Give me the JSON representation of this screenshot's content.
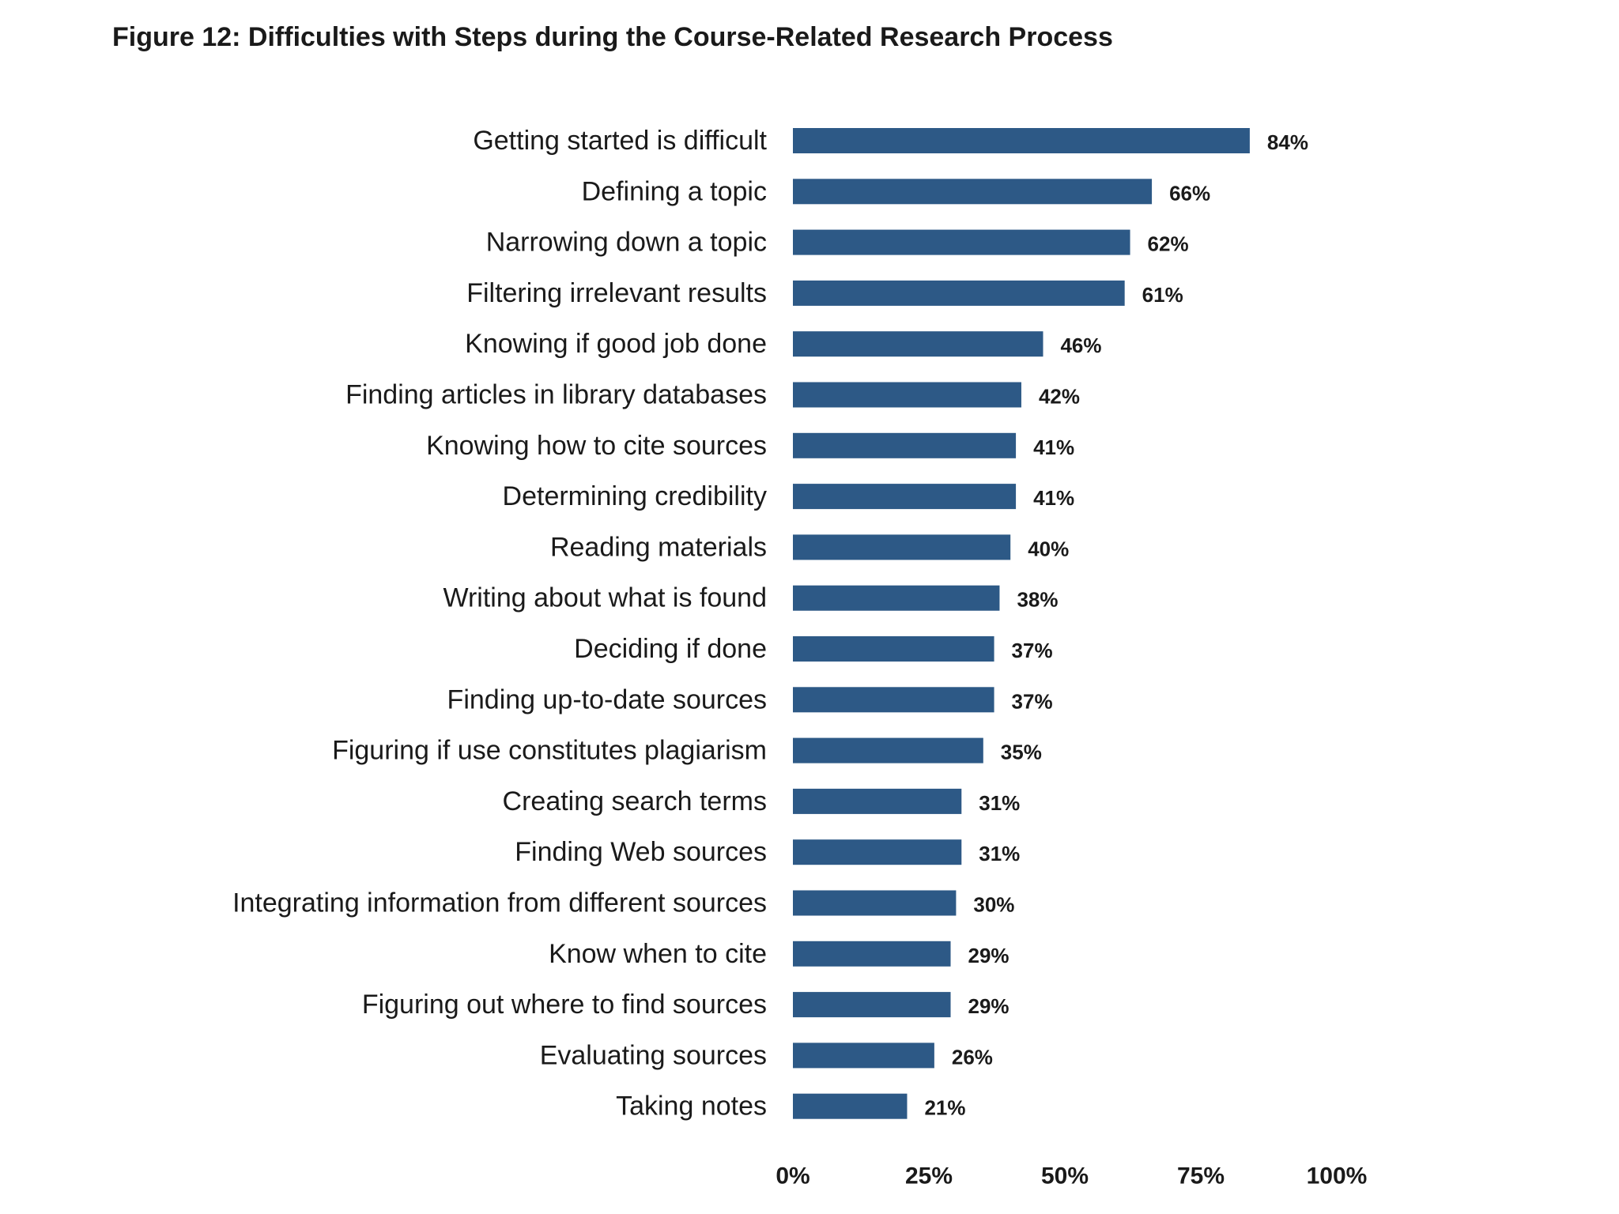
{
  "chart_data": {
    "type": "bar",
    "orientation": "horizontal",
    "title": "Figure 12: Difficulties with Steps during the Course-Related Research Process",
    "categories": [
      "Getting started is difficult",
      "Defining a topic",
      "Narrowing down a topic",
      "Filtering irrelevant results",
      "Knowing if good job done",
      "Finding articles in library databases",
      "Knowing how to cite sources",
      "Determining credibility",
      "Reading materials",
      "Writing about what is found",
      "Deciding if done",
      "Finding up-to-date sources",
      "Figuring if use constitutes plagiarism",
      "Creating search terms",
      "Finding Web sources",
      "Integrating information from different sources",
      "Know when to cite",
      "Figuring out where to find sources",
      "Evaluating sources",
      "Taking notes"
    ],
    "values": [
      84,
      66,
      62,
      61,
      46,
      42,
      41,
      41,
      40,
      38,
      37,
      37,
      35,
      31,
      31,
      30,
      29,
      29,
      26,
      21
    ],
    "value_labels": [
      "84%",
      "66%",
      "62%",
      "61%",
      "46%",
      "42%",
      "41%",
      "41%",
      "40%",
      "38%",
      "37%",
      "37%",
      "35%",
      "31%",
      "31%",
      "30%",
      "29%",
      "29%",
      "26%",
      "21%"
    ],
    "xlim": [
      0,
      100
    ],
    "xticks": [
      0,
      25,
      50,
      75,
      100
    ],
    "xtick_labels": [
      "0%",
      "25%",
      "50%",
      "75%",
      "100%"
    ],
    "xlabel": "",
    "ylabel": "",
    "grid": false,
    "legend": "none",
    "bar_color": "#2d5986"
  }
}
